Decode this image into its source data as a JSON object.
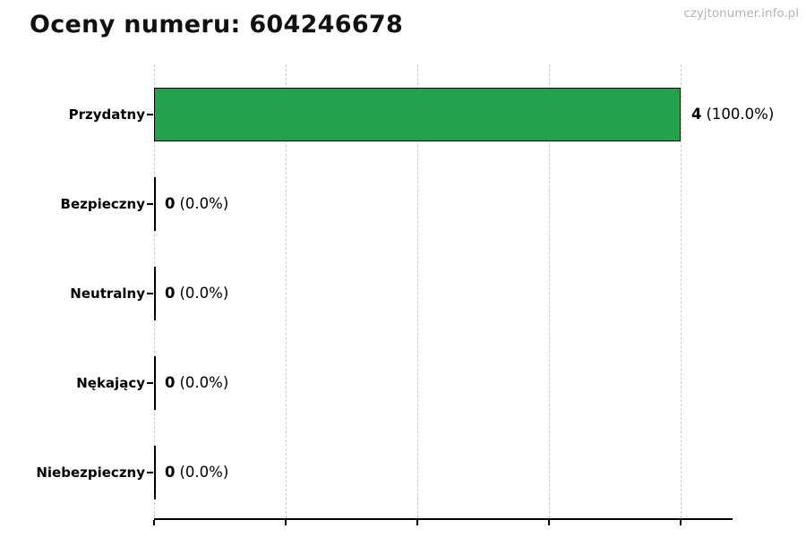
{
  "title": "Oceny numeru: 604246678",
  "watermark": "czyjtonumer.info.pl",
  "colors": {
    "bar": "#22a24c",
    "bar_border": "#000000",
    "gridline": "#cccccc",
    "watermark": "#b3b3b3",
    "text": "#000000"
  },
  "chart_data": {
    "type": "bar",
    "orientation": "horizontal",
    "title": "Oceny numeru: 604246678",
    "categories": [
      "Przydatny",
      "Bezpieczny",
      "Neutralny",
      "Nękający",
      "Niebezpieczny"
    ],
    "values": [
      4,
      0,
      0,
      0,
      0
    ],
    "percentages": [
      100.0,
      0.0,
      0.0,
      0.0,
      0.0
    ],
    "value_labels": [
      "4 (100.0%)",
      "0 (0.0%)",
      "0 (0.0%)",
      "0 (0.0%)",
      "0 (0.0%)"
    ],
    "xlim": [
      0,
      4.4
    ],
    "x_tick_values": [
      0,
      1,
      2,
      3,
      4
    ],
    "x_tick_labels_visible": false,
    "grid": true,
    "grid_style": "dashed-vertical",
    "legend": "none"
  },
  "rows": [
    {
      "label": "Przydatny",
      "count": "4",
      "pct": "(100.0%)"
    },
    {
      "label": "Bezpieczny",
      "count": "0",
      "pct": "(0.0%)"
    },
    {
      "label": "Neutralny",
      "count": "0",
      "pct": "(0.0%)"
    },
    {
      "label": "Nękający",
      "count": "0",
      "pct": "(0.0%)"
    },
    {
      "label": "Niebezpieczny",
      "count": "0",
      "pct": "(0.0%)"
    }
  ]
}
